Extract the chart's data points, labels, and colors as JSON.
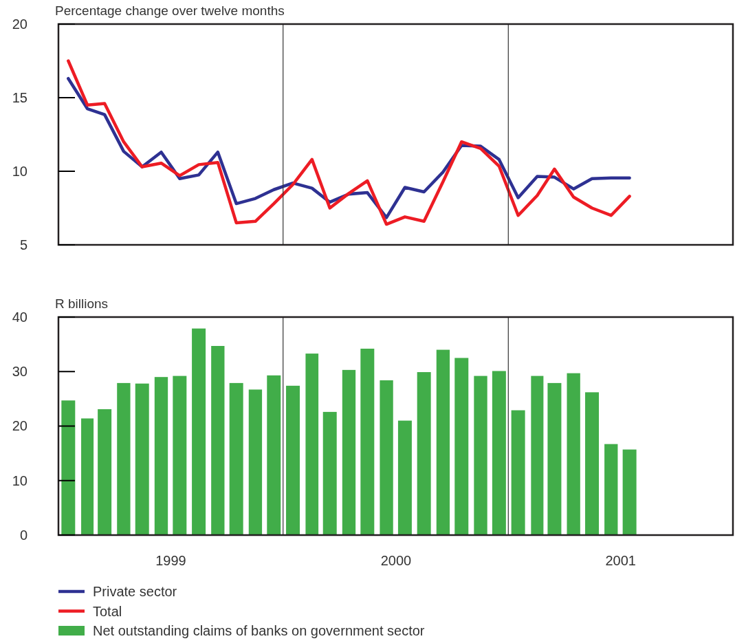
{
  "chart_data": [
    {
      "type": "line",
      "ylabel": "Percentage change over twelve months",
      "x": [
        "1999-01",
        "1999-02",
        "1999-03",
        "1999-04",
        "1999-05",
        "1999-06",
        "1999-07",
        "1999-08",
        "1999-09",
        "1999-10",
        "1999-11",
        "1999-12",
        "2000-01",
        "2000-02",
        "2000-03",
        "2000-04",
        "2000-05",
        "2000-06",
        "2000-07",
        "2000-08",
        "2000-09",
        "2000-10",
        "2000-11",
        "2000-12",
        "2001-01",
        "2001-02",
        "2001-03",
        "2001-04",
        "2001-05",
        "2001-06",
        "2001-07"
      ],
      "series": [
        {
          "name": "Private sector",
          "color": "#2e3192",
          "values": [
            16.3,
            14.25,
            13.85,
            11.35,
            10.3,
            11.3,
            9.5,
            9.75,
            11.3,
            7.8,
            8.15,
            8.75,
            9.2,
            8.85,
            7.9,
            8.45,
            8.55,
            6.85,
            8.9,
            8.6,
            9.95,
            11.75,
            11.7,
            10.8,
            8.2,
            9.65,
            9.6,
            8.8,
            9.5,
            9.55,
            9.55
          ]
        },
        {
          "name": "Total",
          "color": "#ed1c24",
          "values": [
            17.5,
            14.5,
            14.6,
            12.0,
            10.3,
            10.55,
            9.7,
            10.45,
            10.6,
            6.5,
            6.6,
            7.8,
            9.1,
            10.8,
            7.5,
            8.5,
            9.35,
            6.4,
            6.9,
            6.6,
            9.3,
            12.0,
            11.55,
            10.35,
            7.0,
            8.35,
            10.15,
            8.25,
            7.5,
            7.0,
            8.3
          ]
        }
      ],
      "xlim": [
        "1998-12-16",
        "2001-12-16"
      ],
      "ylim": [
        5,
        20
      ],
      "yticks": [
        5,
        10,
        15,
        20
      ],
      "tick_labels": "y",
      "ref_lines": [
        {
          "axis": "x",
          "value": "1999-12-16",
          "color": "#333333"
        },
        {
          "axis": "x",
          "value": "2000-12-16",
          "color": "#333333"
        }
      ],
      "legend": "bottom"
    },
    {
      "type": "bar",
      "ylabel": "R billions",
      "x": [
        "1999-01",
        "1999-02",
        "1999-03",
        "1999-04",
        "1999-05",
        "1999-06",
        "1999-07",
        "1999-08",
        "1999-09",
        "1999-10",
        "1999-11",
        "1999-12",
        "2000-01",
        "2000-02",
        "2000-03",
        "2000-04",
        "2000-05",
        "2000-06",
        "2000-07",
        "2000-08",
        "2000-09",
        "2000-10",
        "2000-11",
        "2000-12",
        "2001-01",
        "2001-02",
        "2001-03",
        "2001-04",
        "2001-05",
        "2001-06",
        "2001-07"
      ],
      "series": [
        {
          "name": "Net outstanding claims of banks on government sector",
          "color": "#41ad49",
          "values": [
            24.7,
            21.4,
            23.1,
            27.9,
            27.8,
            29.0,
            29.2,
            37.9,
            34.7,
            27.9,
            26.7,
            29.3,
            27.4,
            33.3,
            22.6,
            30.3,
            34.2,
            28.4,
            21.0,
            29.9,
            34.0,
            32.5,
            29.2,
            30.1,
            22.9,
            29.2,
            27.9,
            29.7,
            26.2,
            16.7,
            15.7
          ]
        }
      ],
      "xlim": [
        "1998-12-16",
        "2001-12-16"
      ],
      "xticks": [
        {
          "value": "1999-06-16",
          "label": "1999"
        },
        {
          "value": "2000-06-16",
          "label": "2000"
        },
        {
          "value": "2001-06-16",
          "label": "2001"
        }
      ],
      "ylim": [
        0,
        40
      ],
      "yticks": [
        0,
        10,
        20,
        30,
        40
      ],
      "ref_lines": [
        {
          "axis": "x",
          "value": "1999-12-16",
          "color": "#333333"
        },
        {
          "axis": "x",
          "value": "2000-12-16",
          "color": "#333333"
        }
      ],
      "legend": "bottom"
    }
  ]
}
